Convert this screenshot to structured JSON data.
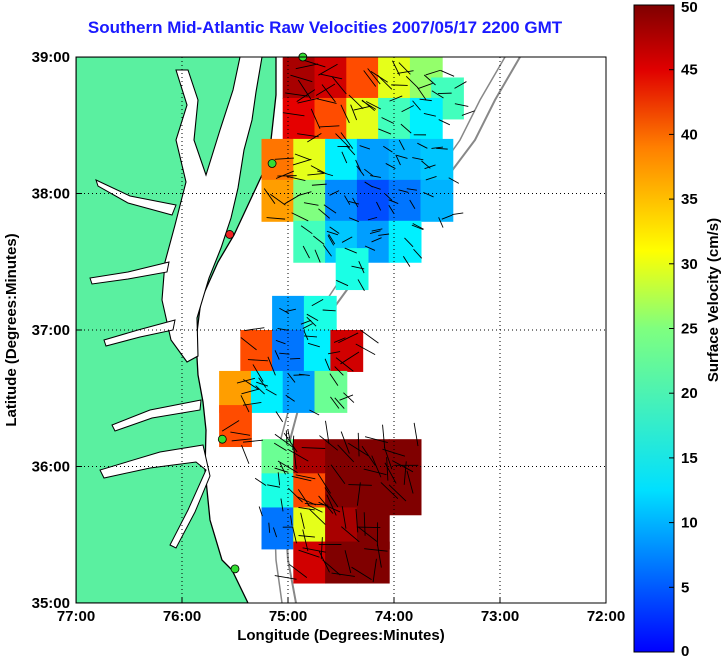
{
  "chart_data": {
    "type": "heatmap",
    "title": "Southern Mid-Atlantic Raw Velocities 2007/05/17 2200 GMT",
    "xlabel": "Longitude (Degrees:Minutes)",
    "ylabel": "Latitude (Degrees:Minutes)",
    "xlim": [
      -77,
      -72
    ],
    "ylim": [
      35,
      39
    ],
    "x_ticks": [
      {
        "value": -77,
        "label": "77:00"
      },
      {
        "value": -76,
        "label": "76:00"
      },
      {
        "value": -75,
        "label": "75:00"
      },
      {
        "value": -74,
        "label": "74:00"
      },
      {
        "value": -73,
        "label": "73:00"
      },
      {
        "value": -72,
        "label": "72:00"
      }
    ],
    "y_ticks": [
      {
        "value": 35,
        "label": "35:00"
      },
      {
        "value": 36,
        "label": "36:00"
      },
      {
        "value": 37,
        "label": "37:00"
      },
      {
        "value": 38,
        "label": "38:00"
      },
      {
        "value": 39,
        "label": "39:00"
      }
    ],
    "grid": true,
    "colorbar": {
      "label": "Surface Velocity (cm/s)",
      "min": 0,
      "max": 50,
      "ticks": [
        "0",
        "5",
        "10",
        "15",
        "20",
        "25",
        "30",
        "35",
        "40",
        "45",
        "50"
      ],
      "colormap": "jet"
    },
    "colors": {
      "land": "#5af0a0",
      "coast": "#000000",
      "bathymetry": "#888888",
      "title": "#1a1aff",
      "station": "#33dd33",
      "station_alert": "#ee2222"
    },
    "regions": [
      {
        "name": "northern",
        "cells": [
          {
            "lon": -74.9,
            "lat": 38.85,
            "v": 48
          },
          {
            "lon": -74.6,
            "lat": 38.85,
            "v": 46
          },
          {
            "lon": -74.3,
            "lat": 38.85,
            "v": 40
          },
          {
            "lon": -74.0,
            "lat": 38.85,
            "v": 30
          },
          {
            "lon": -73.7,
            "lat": 38.85,
            "v": 26
          },
          {
            "lon": -73.5,
            "lat": 38.7,
            "v": 22
          },
          {
            "lon": -74.9,
            "lat": 38.55,
            "v": 45
          },
          {
            "lon": -74.6,
            "lat": 38.55,
            "v": 40
          },
          {
            "lon": -74.3,
            "lat": 38.55,
            "v": 30
          },
          {
            "lon": -74.0,
            "lat": 38.55,
            "v": 22
          },
          {
            "lon": -73.7,
            "lat": 38.55,
            "v": 18
          },
          {
            "lon": -75.1,
            "lat": 38.25,
            "v": 38
          },
          {
            "lon": -74.8,
            "lat": 38.25,
            "v": 30
          },
          {
            "lon": -74.5,
            "lat": 38.25,
            "v": 18
          },
          {
            "lon": -74.2,
            "lat": 38.25,
            "v": 14
          },
          {
            "lon": -73.9,
            "lat": 38.25,
            "v": 15
          },
          {
            "lon": -73.6,
            "lat": 38.25,
            "v": 16
          },
          {
            "lon": -75.1,
            "lat": 37.95,
            "v": 36
          },
          {
            "lon": -74.8,
            "lat": 37.95,
            "v": 25
          },
          {
            "lon": -74.5,
            "lat": 37.95,
            "v": 13
          },
          {
            "lon": -74.2,
            "lat": 37.95,
            "v": 10
          },
          {
            "lon": -73.9,
            "lat": 37.95,
            "v": 12
          },
          {
            "lon": -73.6,
            "lat": 37.95,
            "v": 15
          },
          {
            "lon": -74.8,
            "lat": 37.65,
            "v": 22
          },
          {
            "lon": -74.5,
            "lat": 37.65,
            "v": 16
          },
          {
            "lon": -74.2,
            "lat": 37.65,
            "v": 14
          },
          {
            "lon": -73.9,
            "lat": 37.65,
            "v": 18
          },
          {
            "lon": -74.4,
            "lat": 37.45,
            "v": 20
          }
        ]
      },
      {
        "name": "middle",
        "cells": [
          {
            "lon": -75.0,
            "lat": 37.1,
            "v": 14
          },
          {
            "lon": -74.7,
            "lat": 37.1,
            "v": 20
          },
          {
            "lon": -75.3,
            "lat": 36.85,
            "v": 40
          },
          {
            "lon": -75.0,
            "lat": 36.85,
            "v": 12
          },
          {
            "lon": -74.7,
            "lat": 36.85,
            "v": 18
          },
          {
            "lon": -74.45,
            "lat": 36.85,
            "v": 46
          },
          {
            "lon": -75.5,
            "lat": 36.55,
            "v": 36
          },
          {
            "lon": -75.2,
            "lat": 36.55,
            "v": 18
          },
          {
            "lon": -74.9,
            "lat": 36.55,
            "v": 14
          },
          {
            "lon": -74.6,
            "lat": 36.55,
            "v": 24
          },
          {
            "lon": -75.5,
            "lat": 36.3,
            "v": 40
          }
        ]
      },
      {
        "name": "southern",
        "cells": [
          {
            "lon": -75.1,
            "lat": 36.05,
            "v": 24
          },
          {
            "lon": -74.8,
            "lat": 36.05,
            "v": 48
          },
          {
            "lon": -74.5,
            "lat": 36.05,
            "v": 50
          },
          {
            "lon": -74.2,
            "lat": 36.05,
            "v": 50
          },
          {
            "lon": -73.9,
            "lat": 36.05,
            "v": 50
          },
          {
            "lon": -75.1,
            "lat": 35.8,
            "v": 20
          },
          {
            "lon": -74.8,
            "lat": 35.8,
            "v": 40
          },
          {
            "lon": -74.5,
            "lat": 35.8,
            "v": 50
          },
          {
            "lon": -74.2,
            "lat": 35.8,
            "v": 50
          },
          {
            "lon": -73.9,
            "lat": 35.8,
            "v": 50
          },
          {
            "lon": -75.1,
            "lat": 35.55,
            "v": 12
          },
          {
            "lon": -74.8,
            "lat": 35.55,
            "v": 30
          },
          {
            "lon": -74.5,
            "lat": 35.55,
            "v": 48
          },
          {
            "lon": -74.2,
            "lat": 35.55,
            "v": 50
          },
          {
            "lon": -74.8,
            "lat": 35.3,
            "v": 46
          },
          {
            "lon": -74.5,
            "lat": 35.3,
            "v": 50
          },
          {
            "lon": -74.2,
            "lat": 35.3,
            "v": 50
          }
        ]
      }
    ],
    "stations": [
      {
        "lon": -74.86,
        "lat": 39.0,
        "status": "ok"
      },
      {
        "lon": -75.15,
        "lat": 38.22,
        "status": "ok"
      },
      {
        "lon": -75.55,
        "lat": 37.7,
        "status": "alert"
      },
      {
        "lon": -75.62,
        "lat": 36.2,
        "status": "ok"
      },
      {
        "lon": -75.5,
        "lat": 35.25,
        "status": "ok"
      }
    ]
  }
}
